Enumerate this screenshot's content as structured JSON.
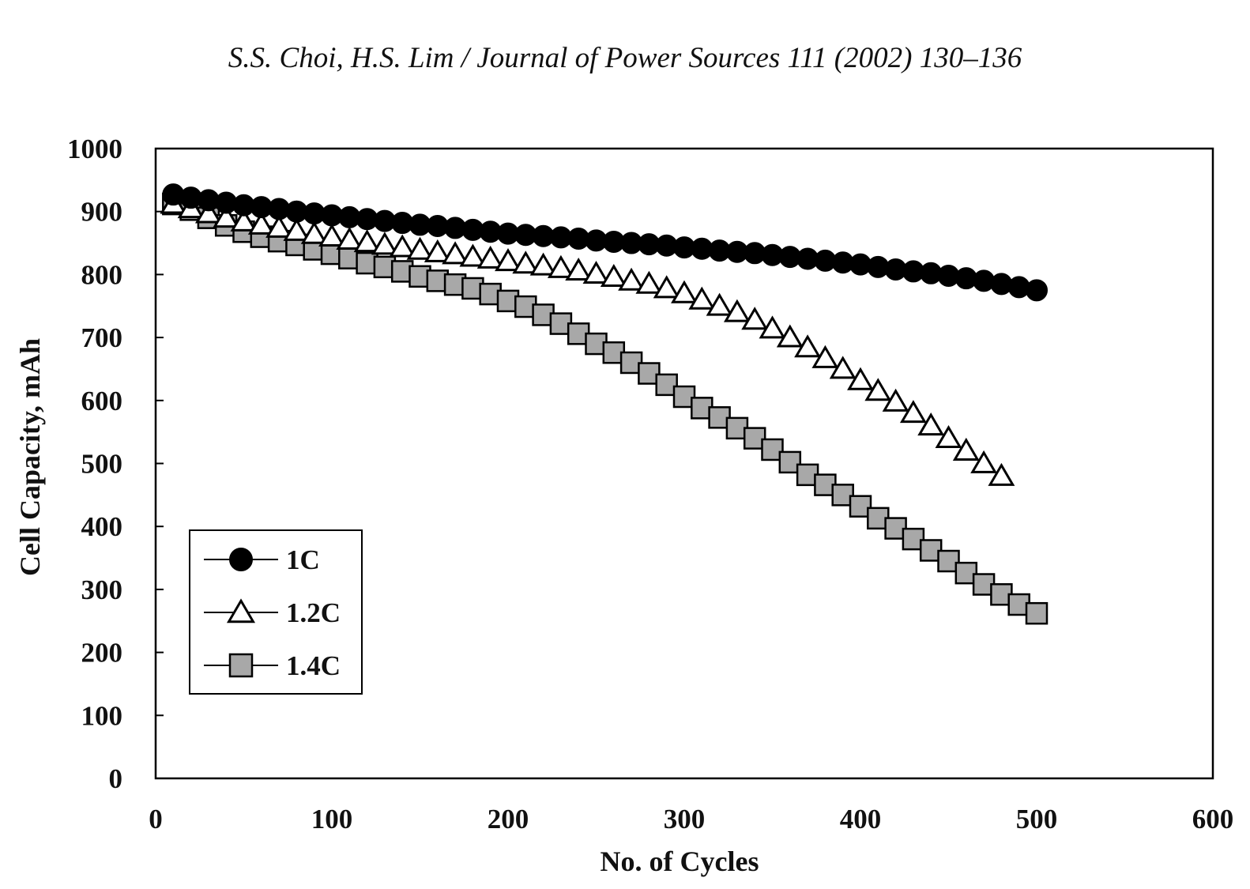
{
  "header": {
    "citation": "S.S. Choi, H.S. Lim / Journal of Power Sources 111 (2002) 130–136"
  },
  "chart_data": {
    "type": "scatter",
    "title": "",
    "xlabel": "No. of Cycles",
    "ylabel": "Cell Capacity, mAh",
    "xlim": [
      0,
      600
    ],
    "ylim": [
      0,
      1000
    ],
    "xticks": [
      0,
      100,
      200,
      300,
      400,
      500,
      600
    ],
    "yticks": [
      0,
      100,
      200,
      300,
      400,
      500,
      600,
      700,
      800,
      900,
      1000
    ],
    "grid": false,
    "legend_position": "bottom-left",
    "series": [
      {
        "name": "1C",
        "marker": "circle",
        "fill": "#000000",
        "x": [
          10,
          20,
          30,
          40,
          50,
          60,
          70,
          80,
          90,
          100,
          110,
          120,
          130,
          140,
          150,
          160,
          170,
          180,
          190,
          200,
          210,
          220,
          230,
          240,
          250,
          260,
          270,
          280,
          290,
          300,
          310,
          320,
          330,
          340,
          350,
          360,
          370,
          380,
          390,
          400,
          410,
          420,
          430,
          440,
          450,
          460,
          470,
          480,
          490,
          500
        ],
        "y": [
          927,
          922,
          918,
          914,
          910,
          907,
          904,
          900,
          897,
          894,
          891,
          888,
          885,
          882,
          879,
          877,
          874,
          871,
          868,
          865,
          863,
          861,
          859,
          857,
          854,
          852,
          850,
          848,
          846,
          843,
          841,
          838,
          836,
          834,
          831,
          828,
          825,
          822,
          819,
          816,
          812,
          808,
          805,
          802,
          798,
          794,
          790,
          785,
          780,
          775
        ]
      },
      {
        "name": "1.2C",
        "marker": "triangle",
        "fill": "#ffffff",
        "x": [
          10,
          20,
          30,
          40,
          50,
          60,
          70,
          80,
          90,
          100,
          110,
          120,
          130,
          140,
          150,
          160,
          170,
          180,
          190,
          200,
          210,
          220,
          230,
          240,
          250,
          260,
          270,
          280,
          290,
          300,
          310,
          320,
          330,
          340,
          350,
          360,
          370,
          380,
          390,
          400,
          410,
          420,
          430,
          440,
          450,
          460,
          470,
          480
        ],
        "y": [
          912,
          905,
          897,
          890,
          884,
          879,
          874,
          869,
          864,
          860,
          855,
          851,
          847,
          843,
          839,
          835,
          832,
          828,
          825,
          821,
          817,
          814,
          810,
          806,
          801,
          796,
          790,
          785,
          778,
          770,
          760,
          750,
          740,
          728,
          714,
          700,
          684,
          667,
          650,
          632,
          615,
          598,
          580,
          560,
          540,
          520,
          500,
          480
        ]
      },
      {
        "name": "1.4C",
        "marker": "square",
        "fill": "#a8a8a8",
        "x": [
          10,
          20,
          30,
          40,
          50,
          60,
          70,
          80,
          90,
          100,
          110,
          120,
          130,
          140,
          150,
          160,
          170,
          180,
          190,
          200,
          210,
          220,
          230,
          240,
          250,
          260,
          270,
          280,
          290,
          300,
          310,
          320,
          330,
          340,
          350,
          360,
          370,
          380,
          390,
          400,
          410,
          420,
          430,
          440,
          450,
          460,
          470,
          480,
          490,
          500
        ],
        "y": [
          912,
          903,
          890,
          878,
          868,
          860,
          853,
          847,
          840,
          833,
          826,
          818,
          812,
          805,
          797,
          790,
          784,
          778,
          769,
          758,
          749,
          736,
          722,
          706,
          690,
          676,
          660,
          643,
          625,
          606,
          588,
          573,
          556,
          540,
          522,
          502,
          482,
          466,
          450,
          432,
          413,
          397,
          380,
          362,
          345,
          326,
          308,
          292,
          276,
          262
        ]
      }
    ]
  }
}
